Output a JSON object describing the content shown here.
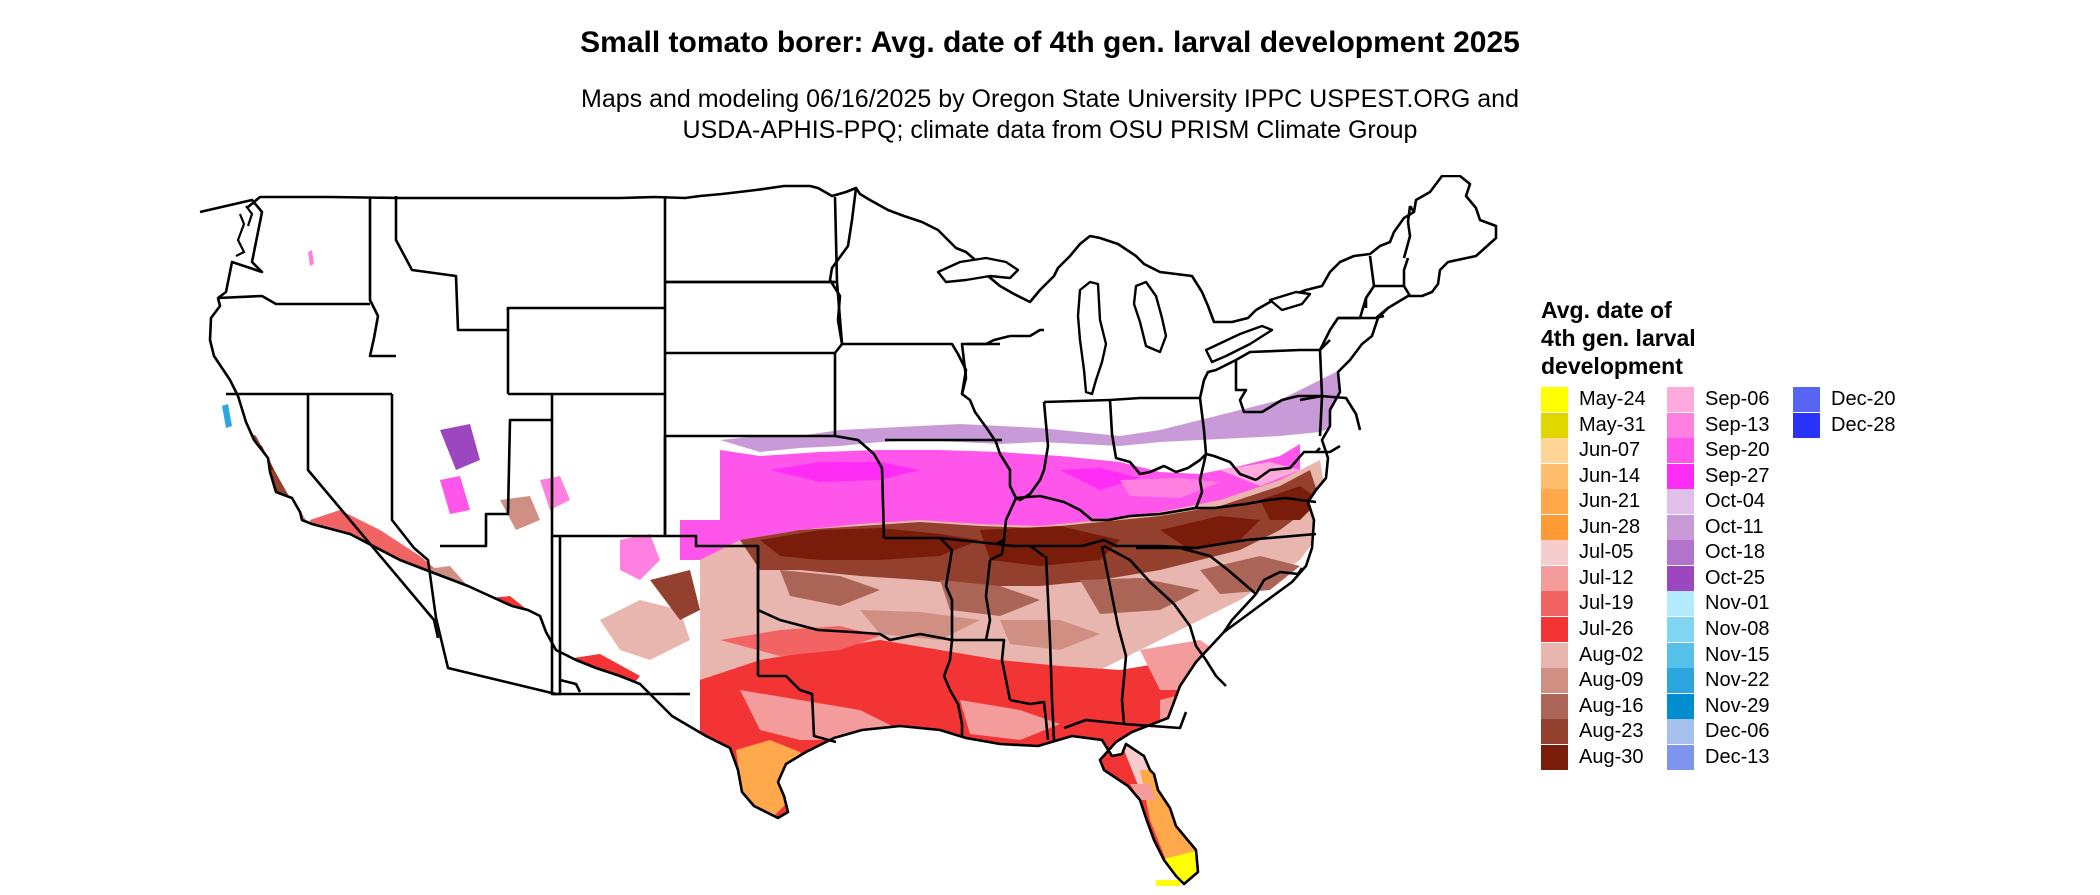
{
  "title": "Small tomato borer: Avg. date of 4th gen. larval development 2025",
  "subtitle": [
    "Maps and modeling 06/16/2025 by Oregon State University IPPC USPEST.ORG and",
    "USDA-APHIS-PPQ; climate data from OSU PRISM Climate Group"
  ],
  "legend": {
    "title_lines": [
      "Avg. date of",
      "4th gen. larval",
      "development"
    ],
    "items": [
      {
        "label": "May-24",
        "color": "#ffff00"
      },
      {
        "label": "May-31",
        "color": "#e1d700"
      },
      {
        "label": "Jun-07",
        "color": "#ffd596"
      },
      {
        "label": "Jun-14",
        "color": "#ffbd6e"
      },
      {
        "label": "Jun-21",
        "color": "#ffa94c"
      },
      {
        "label": "Jun-28",
        "color": "#ff9a35"
      },
      {
        "label": "Jul-05",
        "color": "#f6cccc"
      },
      {
        "label": "Jul-12",
        "color": "#f49c9c"
      },
      {
        "label": "Jul-19",
        "color": "#f26464"
      },
      {
        "label": "Jul-26",
        "color": "#f23434"
      },
      {
        "label": "Aug-02",
        "color": "#e8b6ae"
      },
      {
        "label": "Aug-09",
        "color": "#cf8f83"
      },
      {
        "label": "Aug-16",
        "color": "#ab6556"
      },
      {
        "label": "Aug-23",
        "color": "#94402f"
      },
      {
        "label": "Aug-30",
        "color": "#7a1c0a"
      },
      {
        "label": "Sep-06",
        "color": "#ffaadc"
      },
      {
        "label": "Sep-13",
        "color": "#ff80e0"
      },
      {
        "label": "Sep-20",
        "color": "#ff55ea"
      },
      {
        "label": "Sep-27",
        "color": "#ff2cf5"
      },
      {
        "label": "Oct-04",
        "color": "#e0bfe8"
      },
      {
        "label": "Oct-11",
        "color": "#c99ad8"
      },
      {
        "label": "Oct-18",
        "color": "#b373cc"
      },
      {
        "label": "Oct-25",
        "color": "#9c47bf"
      },
      {
        "label": "Nov-01",
        "color": "#b2ecfc"
      },
      {
        "label": "Nov-08",
        "color": "#80d6f0"
      },
      {
        "label": "Nov-15",
        "color": "#55c0e8"
      },
      {
        "label": "Nov-22",
        "color": "#2ca6de"
      },
      {
        "label": "Nov-29",
        "color": "#008ed0"
      },
      {
        "label": "Dec-06",
        "color": "#a6c0ec"
      },
      {
        "label": "Dec-13",
        "color": "#7e95ee"
      },
      {
        "label": "Dec-20",
        "color": "#5666f2"
      },
      {
        "label": "Dec-28",
        "color": "#2a32f8"
      }
    ]
  }
}
